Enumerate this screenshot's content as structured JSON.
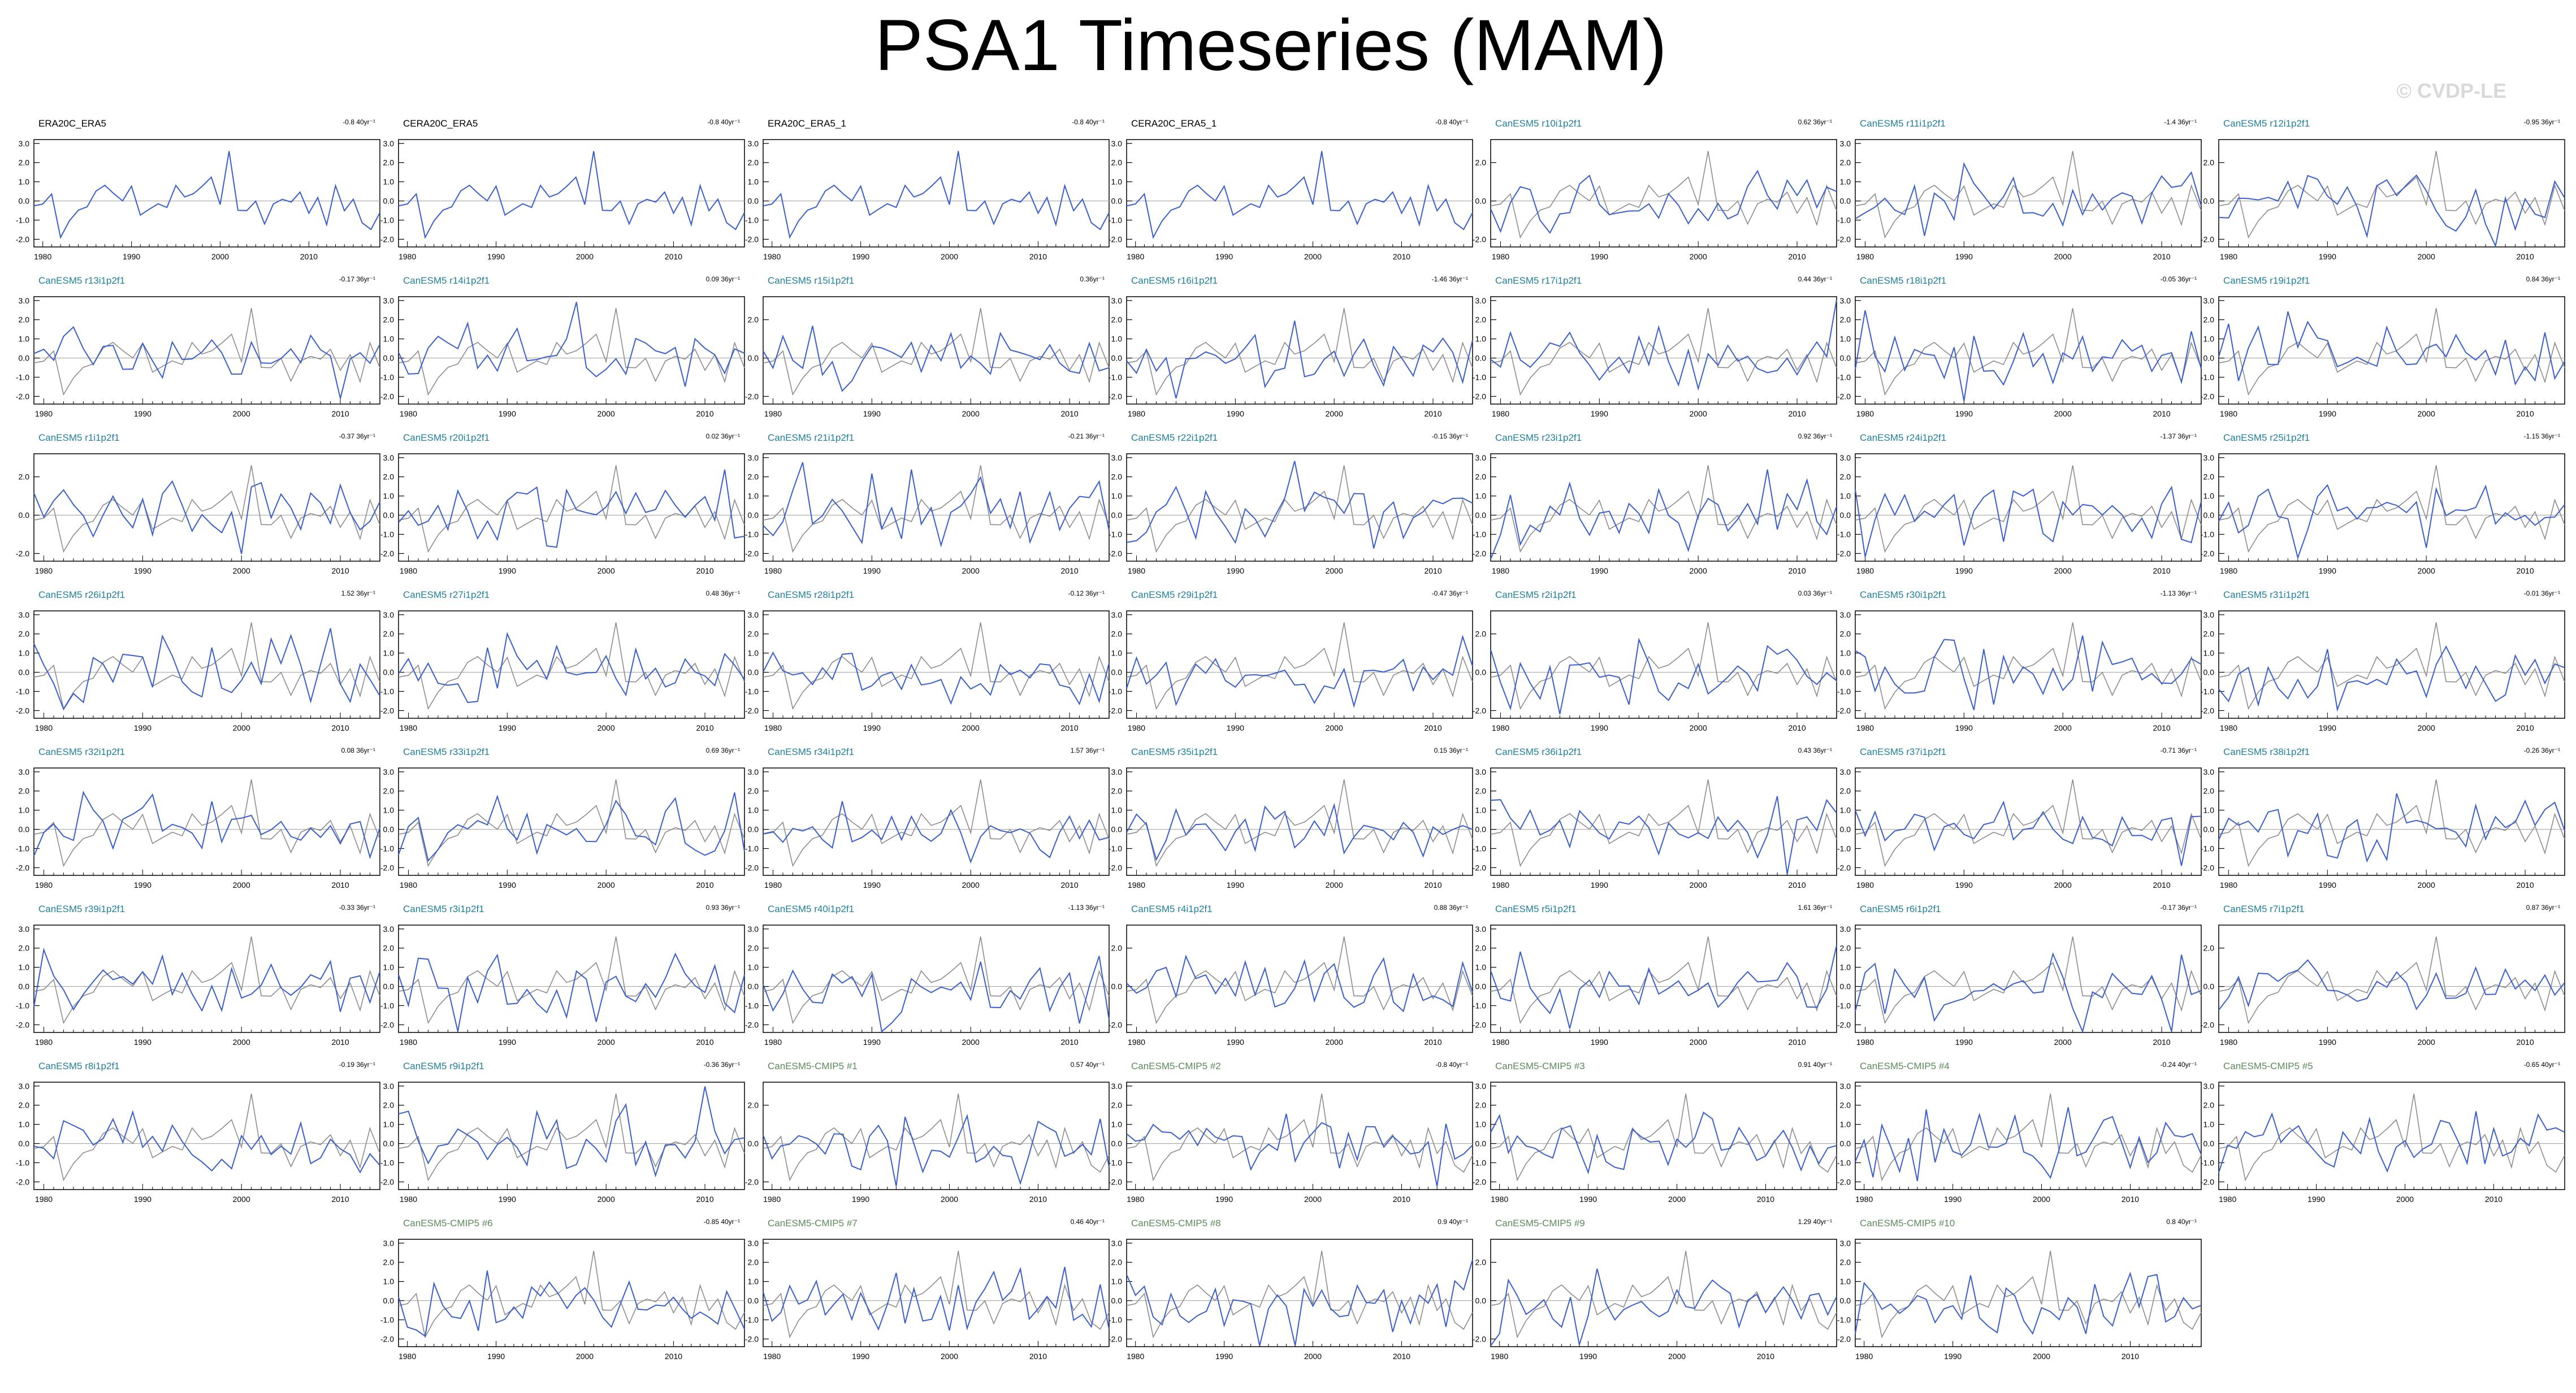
{
  "title": "PSA1 Timeseries (MAM)",
  "watermark": "© CVDP-LE",
  "colors": {
    "model_line": "#3a5fcd",
    "obs_line": "#8c8c8c",
    "zero_line": "#a8a8a8",
    "label_obs": "#000000",
    "label_cmip6": "#1f7f9c",
    "label_cmip5": "#5a8a5a"
  },
  "chart_data": {
    "type": "line",
    "x_ticks": [
      "1980",
      "1990",
      "2000",
      "2010"
    ],
    "panels": [
      {
        "title": "ERA20C_ERA5",
        "trend": "-0.8 40yr⁻¹",
        "group": "obs",
        "yticks": [
          "3.0",
          "2.0",
          "1.0",
          "0.0",
          "-1.0",
          "-2.0"
        ],
        "seed": 1,
        "x_start": 1979,
        "x_end": 2018
      },
      {
        "title": "CERA20C_ERA5",
        "trend": "-0.8 40yr⁻¹",
        "group": "obs",
        "yticks": [
          "3.0",
          "2.0",
          "1.0",
          "0.0",
          "-1.0",
          "-2.0"
        ],
        "seed": 1,
        "x_start": 1979,
        "x_end": 2018
      },
      {
        "title": "ERA20C_ERA5_1",
        "trend": "-0.8 40yr⁻¹",
        "group": "obs",
        "yticks": [
          "3.0",
          "2.0",
          "1.0",
          "0.0",
          "-1.0",
          "-2.0"
        ],
        "seed": 1,
        "x_start": 1979,
        "x_end": 2018
      },
      {
        "title": "CERA20C_ERA5_1",
        "trend": "-0.8 40yr⁻¹",
        "group": "obs",
        "yticks": [
          "3.0",
          "2.0",
          "1.0",
          "0.0",
          "-1.0",
          "-2.0"
        ],
        "seed": 1,
        "x_start": 1979,
        "x_end": 2018
      },
      {
        "title": "CanESM5 r10i1p2f1",
        "trend": "0.62 36yr⁻¹",
        "group": "cmip6",
        "yticks": [
          "2.0",
          "0.0",
          "-2.0"
        ],
        "seed": 10,
        "x_start": 1979,
        "x_end": 2014
      },
      {
        "title": "CanESM5 r11i1p2f1",
        "trend": "-1.4 36yr⁻¹",
        "group": "cmip6",
        "yticks": [
          "3.0",
          "2.0",
          "1.0",
          "0.0",
          "-1.0",
          "-2.0"
        ],
        "seed": 11,
        "x_start": 1979,
        "x_end": 2014
      },
      {
        "title": "CanESM5 r12i1p2f1",
        "trend": "-0.95 36yr⁻¹",
        "group": "cmip6",
        "yticks": [
          "2.0",
          "0.0",
          "-2.0"
        ],
        "seed": 12,
        "x_start": 1979,
        "x_end": 2014
      },
      {
        "title": "CanESM5 r13i1p2f1",
        "trend": "-0.17 36yr⁻¹",
        "group": "cmip6",
        "yticks": [
          "3.0",
          "2.0",
          "1.0",
          "0.0",
          "-1.0",
          "-2.0"
        ],
        "seed": 13,
        "x_start": 1979,
        "x_end": 2014
      },
      {
        "title": "CanESM5 r14i1p2f1",
        "trend": "0.09 36yr⁻¹",
        "group": "cmip6",
        "yticks": [
          "3.0",
          "2.0",
          "1.0",
          "0.0",
          "-1.0",
          "-2.0"
        ],
        "seed": 14,
        "x_start": 1979,
        "x_end": 2014
      },
      {
        "title": "CanESM5 r15i1p2f1",
        "trend": "0.36yr⁻¹",
        "group": "cmip6",
        "yticks": [
          "2.0",
          "0.0",
          "-2.0"
        ],
        "seed": 15,
        "x_start": 1979,
        "x_end": 2014
      },
      {
        "title": "CanESM5 r16i1p2f1",
        "trend": "-1.46 36yr⁻¹",
        "group": "cmip6",
        "yticks": [
          "3.0",
          "2.0",
          "1.0",
          "0.0",
          "-1.0",
          "-2.0"
        ],
        "seed": 16,
        "x_start": 1979,
        "x_end": 2014
      },
      {
        "title": "CanESM5 r17i1p2f1",
        "trend": "0.44 36yr⁻¹",
        "group": "cmip6",
        "yticks": [
          "3.0",
          "2.0",
          "1.0",
          "0.0",
          "-1.0",
          "-2.0"
        ],
        "seed": 17,
        "x_start": 1979,
        "x_end": 2014
      },
      {
        "title": "CanESM5 r18i1p2f1",
        "trend": "-0.05 36yr⁻¹",
        "group": "cmip6",
        "yticks": [
          "3.0",
          "2.0",
          "1.0",
          "0.0",
          "-1.0",
          "-2.0"
        ],
        "seed": 18,
        "x_start": 1979,
        "x_end": 2014
      },
      {
        "title": "CanESM5 r19i1p2f1",
        "trend": "0.84 36yr⁻¹",
        "group": "cmip6",
        "yticks": [
          "3.0",
          "2.0",
          "1.0",
          "0.0",
          "-1.0",
          "-2.0"
        ],
        "seed": 19,
        "x_start": 1979,
        "x_end": 2014
      },
      {
        "title": "CanESM5 r1i1p2f1",
        "trend": "-0.37 36yr⁻¹",
        "group": "cmip6",
        "yticks": [
          "2.0",
          "0.0",
          "-2.0"
        ],
        "seed": 20,
        "x_start": 1979,
        "x_end": 2014
      },
      {
        "title": "CanESM5 r20i1p2f1",
        "trend": "0.02 36yr⁻¹",
        "group": "cmip6",
        "yticks": [
          "3.0",
          "2.0",
          "1.0",
          "0.0",
          "-1.0",
          "-2.0"
        ],
        "seed": 21,
        "x_start": 1979,
        "x_end": 2014
      },
      {
        "title": "CanESM5 r21i1p2f1",
        "trend": "-0.21 36yr⁻¹",
        "group": "cmip6",
        "yticks": [
          "3.0",
          "2.0",
          "1.0",
          "0.0",
          "-1.0",
          "-2.0"
        ],
        "seed": 22,
        "x_start": 1979,
        "x_end": 2014
      },
      {
        "title": "CanESM5 r22i1p2f1",
        "trend": "-0.15 36yr⁻¹",
        "group": "cmip6",
        "yticks": [
          "3.0",
          "2.0",
          "1.0",
          "0.0",
          "-1.0",
          "-2.0"
        ],
        "seed": 23,
        "x_start": 1979,
        "x_end": 2014
      },
      {
        "title": "CanESM5 r23i1p2f1",
        "trend": "0.92 36yr⁻¹",
        "group": "cmip6",
        "yticks": [
          "3.0",
          "2.0",
          "1.0",
          "0.0",
          "-1.0",
          "-2.0"
        ],
        "seed": 24,
        "x_start": 1979,
        "x_end": 2014
      },
      {
        "title": "CanESM5 r24i1p2f1",
        "trend": "-1.37 36yr⁻¹",
        "group": "cmip6",
        "yticks": [
          "3.0",
          "2.0",
          "1.0",
          "0.0",
          "-1.0",
          "-2.0"
        ],
        "seed": 25,
        "x_start": 1979,
        "x_end": 2014
      },
      {
        "title": "CanESM5 r25i1p2f1",
        "trend": "-1.15 36yr⁻¹",
        "group": "cmip6",
        "yticks": [
          "3.0",
          "2.0",
          "1.0",
          "0.0",
          "-1.0",
          "-2.0"
        ],
        "seed": 26,
        "x_start": 1979,
        "x_end": 2014
      },
      {
        "title": "CanESM5 r26i1p2f1",
        "trend": "1.52 36yr⁻¹",
        "group": "cmip6",
        "yticks": [
          "3.0",
          "2.0",
          "1.0",
          "0.0",
          "-1.0",
          "-2.0"
        ],
        "seed": 27,
        "x_start": 1979,
        "x_end": 2014
      },
      {
        "title": "CanESM5 r27i1p2f1",
        "trend": "0.48 36yr⁻¹",
        "group": "cmip6",
        "yticks": [
          "3.0",
          "2.0",
          "1.0",
          "0.0",
          "-1.0",
          "-2.0"
        ],
        "seed": 28,
        "x_start": 1979,
        "x_end": 2014
      },
      {
        "title": "CanESM5 r28i1p2f1",
        "trend": "-0.12 36yr⁻¹",
        "group": "cmip6",
        "yticks": [
          "3.0",
          "2.0",
          "1.0",
          "0.0",
          "-1.0",
          "-2.0"
        ],
        "seed": 29,
        "x_start": 1979,
        "x_end": 2014
      },
      {
        "title": "CanESM5 r29i1p2f1",
        "trend": "-0.47 36yr⁻¹",
        "group": "cmip6",
        "yticks": [
          "3.0",
          "2.0",
          "1.0",
          "0.0",
          "-1.0",
          "-2.0"
        ],
        "seed": 30,
        "x_start": 1979,
        "x_end": 2014
      },
      {
        "title": "CanESM5 r2i1p2f1",
        "trend": "0.03 36yr⁻¹",
        "group": "cmip6",
        "yticks": [
          "2.0",
          "0.0",
          "-2.0"
        ],
        "seed": 31,
        "x_start": 1979,
        "x_end": 2014
      },
      {
        "title": "CanESM5 r30i1p2f1",
        "trend": "-1.13 36yr⁻¹",
        "group": "cmip6",
        "yticks": [
          "3.0",
          "2.0",
          "1.0",
          "0.0",
          "-1.0",
          "-2.0"
        ],
        "seed": 32,
        "x_start": 1979,
        "x_end": 2014
      },
      {
        "title": "CanESM5 r31i1p2f1",
        "trend": "-0.01 36yr⁻¹",
        "group": "cmip6",
        "yticks": [
          "3.0",
          "2.0",
          "1.0",
          "0.0",
          "-1.0",
          "-2.0"
        ],
        "seed": 33,
        "x_start": 1979,
        "x_end": 2014
      },
      {
        "title": "CanESM5 r32i1p2f1",
        "trend": "0.08 36yr⁻¹",
        "group": "cmip6",
        "yticks": [
          "3.0",
          "2.0",
          "1.0",
          "0.0",
          "-1.0",
          "-2.0"
        ],
        "seed": 34,
        "x_start": 1979,
        "x_end": 2014
      },
      {
        "title": "CanESM5 r33i1p2f1",
        "trend": "0.69 36yr⁻¹",
        "group": "cmip6",
        "yticks": [
          "3.0",
          "2.0",
          "1.0",
          "0.0",
          "-1.0",
          "-2.0"
        ],
        "seed": 35,
        "x_start": 1979,
        "x_end": 2014
      },
      {
        "title": "CanESM5 r34i1p2f1",
        "trend": "1.57 36yr⁻¹",
        "group": "cmip6",
        "yticks": [
          "3.0",
          "2.0",
          "1.0",
          "0.0",
          "-1.0",
          "-2.0"
        ],
        "seed": 36,
        "x_start": 1979,
        "x_end": 2014
      },
      {
        "title": "CanESM5 r35i1p2f1",
        "trend": "0.15 36yr⁻¹",
        "group": "cmip6",
        "yticks": [
          "3.0",
          "2.0",
          "1.0",
          "0.0",
          "-1.0",
          "-2.0"
        ],
        "seed": 37,
        "x_start": 1979,
        "x_end": 2014
      },
      {
        "title": "CanESM5 r36i1p2f1",
        "trend": "0.43 36yr⁻¹",
        "group": "cmip6",
        "yticks": [
          "3.0",
          "2.0",
          "1.0",
          "0.0",
          "-1.0",
          "-2.0"
        ],
        "seed": 38,
        "x_start": 1979,
        "x_end": 2014
      },
      {
        "title": "CanESM5 r37i1p2f1",
        "trend": "-0.71 36yr⁻¹",
        "group": "cmip6",
        "yticks": [
          "3.0",
          "2.0",
          "1.0",
          "0.0",
          "-1.0",
          "-2.0"
        ],
        "seed": 39,
        "x_start": 1979,
        "x_end": 2014
      },
      {
        "title": "CanESM5 r38i1p2f1",
        "trend": "-0.26 36yr⁻¹",
        "group": "cmip6",
        "yticks": [
          "3.0",
          "2.0",
          "1.0",
          "0.0",
          "-1.0",
          "-2.0"
        ],
        "seed": 40,
        "x_start": 1979,
        "x_end": 2014
      },
      {
        "title": "CanESM5 r39i1p2f1",
        "trend": "-0.33 36yr⁻¹",
        "group": "cmip6",
        "yticks": [
          "3.0",
          "2.0",
          "1.0",
          "0.0",
          "-1.0",
          "-2.0"
        ],
        "seed": 41,
        "x_start": 1979,
        "x_end": 2014
      },
      {
        "title": "CanESM5 r3i1p2f1",
        "trend": "0.93 36yr⁻¹",
        "group": "cmip6",
        "yticks": [
          "3.0",
          "2.0",
          "1.0",
          "0.0",
          "-1.0",
          "-2.0"
        ],
        "seed": 42,
        "x_start": 1979,
        "x_end": 2014
      },
      {
        "title": "CanESM5 r40i1p2f1",
        "trend": "-1.13 36yr⁻¹",
        "group": "cmip6",
        "yticks": [
          "3.0",
          "2.0",
          "1.0",
          "0.0",
          "-1.0",
          "-2.0"
        ],
        "seed": 43,
        "x_start": 1979,
        "x_end": 2014
      },
      {
        "title": "CanESM5 r4i1p2f1",
        "trend": "0.88 36yr⁻¹",
        "group": "cmip6",
        "yticks": [
          "2.0",
          "0.0",
          "-2.0"
        ],
        "seed": 44,
        "x_start": 1979,
        "x_end": 2014
      },
      {
        "title": "CanESM5 r5i1p2f1",
        "trend": "1.61 36yr⁻¹",
        "group": "cmip6",
        "yticks": [
          "3.0",
          "2.0",
          "1.0",
          "0.0",
          "-1.0",
          "-2.0"
        ],
        "seed": 45,
        "x_start": 1979,
        "x_end": 2014
      },
      {
        "title": "CanESM5 r6i1p2f1",
        "trend": "-0.17 36yr⁻¹",
        "group": "cmip6",
        "yticks": [
          "3.0",
          "2.0",
          "1.0",
          "0.0",
          "-1.0",
          "-2.0"
        ],
        "seed": 46,
        "x_start": 1979,
        "x_end": 2014
      },
      {
        "title": "CanESM5 r7i1p2f1",
        "trend": "0.87 36yr⁻¹",
        "group": "cmip6",
        "yticks": [
          "2.0",
          "0.0",
          "-2.0"
        ],
        "seed": 47,
        "x_start": 1979,
        "x_end": 2014
      },
      {
        "title": "CanESM5 r8i1p2f1",
        "trend": "-0.19 36yr⁻¹",
        "group": "cmip6",
        "yticks": [
          "3.0",
          "2.0",
          "1.0",
          "0.0",
          "-1.0",
          "-2.0"
        ],
        "seed": 48,
        "x_start": 1979,
        "x_end": 2014
      },
      {
        "title": "CanESM5 r9i1p2f1",
        "trend": "-0.36 36yr⁻¹",
        "group": "cmip6",
        "yticks": [
          "3.0",
          "2.0",
          "1.0",
          "0.0",
          "-1.0",
          "-2.0"
        ],
        "seed": 49,
        "x_start": 1979,
        "x_end": 2014
      },
      {
        "title": "CanESM5-CMIP5 #1",
        "trend": "0.57 40yr⁻¹",
        "group": "cmip5",
        "yticks": [
          "2.0",
          "0.0",
          "-2.0"
        ],
        "seed": 50,
        "x_start": 1979,
        "x_end": 2018
      },
      {
        "title": "CanESM5-CMIP5 #2",
        "trend": "-0.8 40yr⁻¹",
        "group": "cmip5",
        "yticks": [
          "3.0",
          "2.0",
          "1.0",
          "0.0",
          "-1.0",
          "-2.0"
        ],
        "seed": 51,
        "x_start": 1979,
        "x_end": 2018
      },
      {
        "title": "CanESM5-CMIP5 #3",
        "trend": "0.91 40yr⁻¹",
        "group": "cmip5",
        "yticks": [
          "3.0",
          "2.0",
          "1.0",
          "0.0",
          "-1.0",
          "-2.0"
        ],
        "seed": 52,
        "x_start": 1979,
        "x_end": 2018
      },
      {
        "title": "CanESM5-CMIP5 #4",
        "trend": "-0.24 40yr⁻¹",
        "group": "cmip5",
        "yticks": [
          "3.0",
          "2.0",
          "1.0",
          "0.0",
          "-1.0",
          "-2.0"
        ],
        "seed": 53,
        "x_start": 1979,
        "x_end": 2018
      },
      {
        "title": "CanESM5-CMIP5 #5",
        "trend": "-0.65 40yr⁻¹",
        "group": "cmip5",
        "yticks": [
          "3.0",
          "2.0",
          "1.0",
          "0.0",
          "-1.0",
          "-2.0"
        ],
        "seed": 54,
        "x_start": 1979,
        "x_end": 2018
      },
      {
        "title": "CanESM5-CMIP5 #6",
        "trend": "-0.85 40yr⁻¹",
        "group": "cmip5",
        "yticks": [
          "3.0",
          "2.0",
          "1.0",
          "0.0",
          "-1.0",
          "-2.0"
        ],
        "seed": 55,
        "x_start": 1979,
        "x_end": 2018
      },
      {
        "title": "CanESM5-CMIP5 #7",
        "trend": "0.46 40yr⁻¹",
        "group": "cmip5",
        "yticks": [
          "3.0",
          "2.0",
          "1.0",
          "0.0",
          "-1.0",
          "-2.0"
        ],
        "seed": 56,
        "x_start": 1979,
        "x_end": 2018
      },
      {
        "title": "CanESM5-CMIP5 #8",
        "trend": "0.9 40yr⁻¹",
        "group": "cmip5",
        "yticks": [
          "3.0",
          "2.0",
          "1.0",
          "0.0",
          "-1.0",
          "-2.0"
        ],
        "seed": 57,
        "x_start": 1979,
        "x_end": 2018
      },
      {
        "title": "CanESM5-CMIP5 #9",
        "trend": "1.29 40yr⁻¹",
        "group": "cmip5",
        "yticks": [
          "2.0",
          "0.0",
          "-2.0"
        ],
        "seed": 58,
        "x_start": 1979,
        "x_end": 2018
      },
      {
        "title": "CanESM5-CMIP5 #10",
        "trend": "0.8 40yr⁻¹",
        "group": "cmip5",
        "yticks": [
          "3.0",
          "2.0",
          "1.0",
          "0.0",
          "-1.0",
          "-2.0"
        ],
        "seed": 59,
        "x_start": 1979,
        "x_end": 2018
      }
    ]
  }
}
